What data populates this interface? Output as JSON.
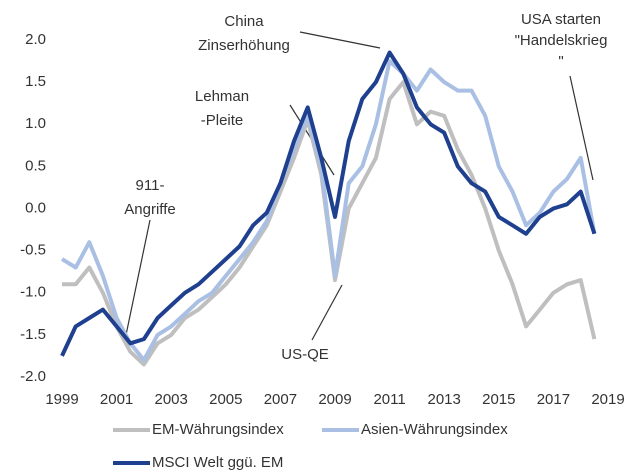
{
  "chart_data": {
    "type": "line",
    "x": [
      1999,
      1999.5,
      2000,
      2000.5,
      2001,
      2001.5,
      2002,
      2002.5,
      2003,
      2003.5,
      2004,
      2004.5,
      2005,
      2005.5,
      2006,
      2006.5,
      2007,
      2007.5,
      2008,
      2008.5,
      2009,
      2009.5,
      2010,
      2010.5,
      2011,
      2011.5,
      2012,
      2012.5,
      2013,
      2013.5,
      2014,
      2014.5,
      2015,
      2015.5,
      2016,
      2016.5,
      2017,
      2017.5,
      2018,
      2018.5
    ],
    "series": [
      {
        "name": "EM-Währungsindex",
        "color": "#bfbfbf",
        "values": [
          -0.9,
          -0.9,
          -0.7,
          -1.0,
          -1.4,
          -1.7,
          -1.85,
          -1.6,
          -1.5,
          -1.3,
          -1.2,
          -1.05,
          -0.9,
          -0.7,
          -0.45,
          -0.2,
          0.2,
          0.6,
          1.05,
          0.4,
          -0.85,
          0.0,
          0.3,
          0.6,
          1.3,
          1.5,
          1.0,
          1.15,
          1.1,
          0.7,
          0.4,
          0.0,
          -0.5,
          -0.9,
          -1.4,
          -1.2,
          -1.0,
          -0.9,
          -0.85,
          -1.55
        ]
      },
      {
        "name": "Asien-Währungsindex",
        "color": "#a9bfe3",
        "values": [
          -0.6,
          -0.7,
          -0.4,
          -0.8,
          -1.3,
          -1.6,
          -1.8,
          -1.5,
          -1.4,
          -1.25,
          -1.1,
          -1.0,
          -0.8,
          -0.6,
          -0.4,
          -0.15,
          0.3,
          0.7,
          1.1,
          0.5,
          -0.8,
          0.3,
          0.5,
          1.0,
          1.75,
          1.6,
          1.4,
          1.65,
          1.5,
          1.4,
          1.4,
          1.1,
          0.5,
          0.2,
          -0.2,
          -0.05,
          0.2,
          0.35,
          0.6,
          -0.3
        ]
      },
      {
        "name": "MSCI Welt ggü. EM",
        "color": "#1f3f8f",
        "values": [
          -1.75,
          -1.4,
          -1.3,
          -1.2,
          -1.4,
          -1.6,
          -1.55,
          -1.3,
          -1.15,
          -1.0,
          -0.9,
          -0.75,
          -0.6,
          -0.45,
          -0.2,
          -0.05,
          0.3,
          0.8,
          1.2,
          0.6,
          -0.1,
          0.8,
          1.3,
          1.5,
          1.85,
          1.6,
          1.2,
          1.0,
          0.9,
          0.5,
          0.3,
          0.2,
          -0.1,
          -0.2,
          -0.3,
          -0.1,
          0.0,
          0.05,
          0.2,
          -0.3
        ]
      }
    ],
    "xlim": [
      1999,
      2019
    ],
    "xticks": [
      1999,
      2001,
      2003,
      2005,
      2007,
      2009,
      2011,
      2013,
      2015,
      2017,
      2019
    ],
    "ylim": [
      -2.0,
      2.0
    ],
    "yticks": [
      {
        "value": 2.0,
        "label": "2.0"
      },
      1.5,
      {
        "value": 1.0,
        "label": "1.0"
      },
      0.5,
      {
        "value": 0.0,
        "label": "0.0"
      },
      -0.5,
      {
        "value": -1.0,
        "label": "-1.0"
      },
      -1.5,
      {
        "value": -2.0,
        "label": "-2.0"
      }
    ],
    "grid": false,
    "annotations": [
      {
        "lines": [
          "China",
          "Zinserhöhung"
        ]
      },
      {
        "lines": [
          "Lehman",
          "-Pleite"
        ]
      },
      {
        "lines": [
          "911-",
          "Angriffe"
        ]
      },
      {
        "lines": [
          "US-QE"
        ]
      },
      {
        "lines": [
          "USA starten",
          "\"Handelskrieg",
          "\""
        ]
      }
    ]
  }
}
